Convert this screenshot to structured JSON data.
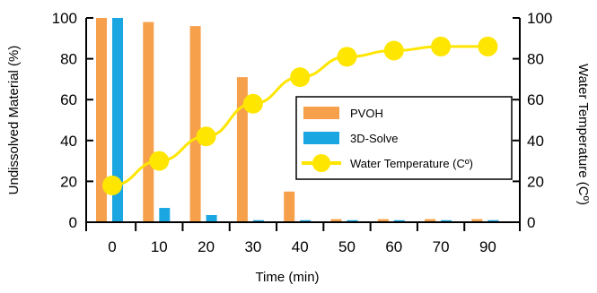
{
  "chart_data": {
    "type": "bar",
    "categories": [
      "0",
      "10",
      "20",
      "30",
      "40",
      "50",
      "60",
      "70",
      "90"
    ],
    "xlabel": "Time (min)",
    "ylabel": "Undissolved Material (%)",
    "ylabel_right": "Water Temperature (Cº)",
    "ylim": [
      0,
      100
    ],
    "ylim_right": [
      0,
      100
    ],
    "yticks": [
      "0",
      "20",
      "40",
      "60",
      "80",
      "100"
    ],
    "series": [
      {
        "name": "PVOH",
        "kind": "bar",
        "axis": "left",
        "color": "#F7A04B",
        "values": [
          100,
          98,
          96,
          71,
          15,
          1.5,
          1.5,
          1.5,
          1.5
        ]
      },
      {
        "name": "3D-Solve",
        "kind": "bar",
        "axis": "left",
        "color": "#1AA7E1",
        "values": [
          100,
          7,
          3.5,
          1,
          1,
          1,
          1,
          1,
          1
        ]
      },
      {
        "name": "Water Temperature (Cº)",
        "kind": "line",
        "axis": "right",
        "color": "#FFE600",
        "values": [
          18,
          30,
          42,
          58,
          71,
          81,
          84,
          86,
          86
        ]
      }
    ],
    "legend_position": "center-right",
    "grid": false
  }
}
